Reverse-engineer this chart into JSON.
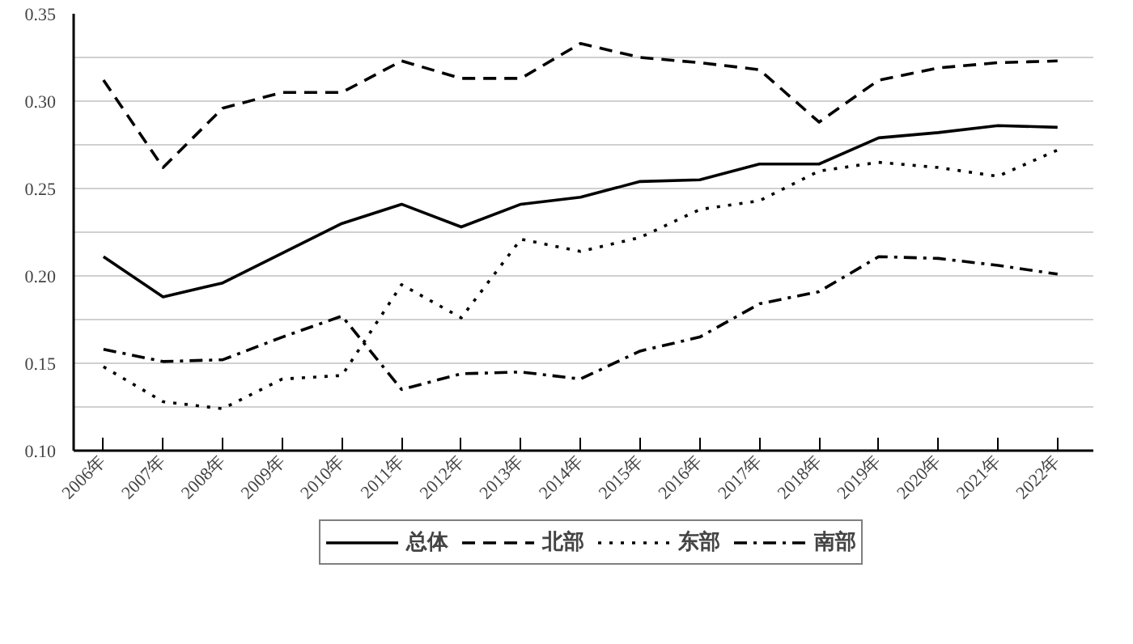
{
  "chart_data": {
    "type": "line",
    "categories": [
      "2006年",
      "2007年",
      "2008年",
      "2009年",
      "2010年",
      "2011年",
      "2012年",
      "2013年",
      "2014年",
      "2015年",
      "2016年",
      "2017年",
      "2018年",
      "2019年",
      "2020年",
      "2021年",
      "2022年"
    ],
    "series": [
      {
        "name": "总体",
        "color": "#000000",
        "line_style": "solid",
        "values": [
          0.211,
          0.188,
          0.196,
          0.213,
          0.23,
          0.241,
          0.228,
          0.241,
          0.245,
          0.254,
          0.255,
          0.264,
          0.264,
          0.279,
          0.282,
          0.286,
          0.285
        ]
      },
      {
        "name": "北部",
        "color": "#000000",
        "line_style": "dashed",
        "values": [
          0.312,
          0.262,
          0.296,
          0.305,
          0.305,
          0.323,
          0.313,
          0.313,
          0.333,
          0.325,
          0.322,
          0.318,
          0.288,
          0.312,
          0.319,
          0.322,
          0.323
        ]
      },
      {
        "name": "东部",
        "color": "#000000",
        "line_style": "dotted",
        "values": [
          0.148,
          0.128,
          0.124,
          0.141,
          0.143,
          0.195,
          0.176,
          0.221,
          0.214,
          0.222,
          0.238,
          0.243,
          0.26,
          0.265,
          0.262,
          0.257,
          0.272
        ]
      },
      {
        "name": "南部",
        "color": "#000000",
        "line_style": "dashdot",
        "values": [
          0.158,
          0.151,
          0.152,
          0.165,
          0.177,
          0.135,
          0.144,
          0.145,
          0.141,
          0.157,
          0.165,
          0.184,
          0.191,
          0.211,
          0.21,
          0.206,
          0.201
        ]
      }
    ],
    "ylim": [
      0.1,
      0.35
    ],
    "yticks": [
      {
        "value": 0.1,
        "label": "0.10"
      },
      {
        "value": 0.125,
        "label": null
      },
      0.15,
      {
        "value": 0.175,
        "label": null
      },
      {
        "value": 0.2,
        "label": "0.20"
      },
      {
        "value": 0.225,
        "label": null
      },
      0.25,
      {
        "value": 0.275,
        "label": null
      },
      {
        "value": 0.3,
        "label": "0.30"
      },
      {
        "value": 0.325,
        "label": null
      },
      0.35
    ],
    "grid": "y",
    "legend": "bottom",
    "marker": "none"
  }
}
